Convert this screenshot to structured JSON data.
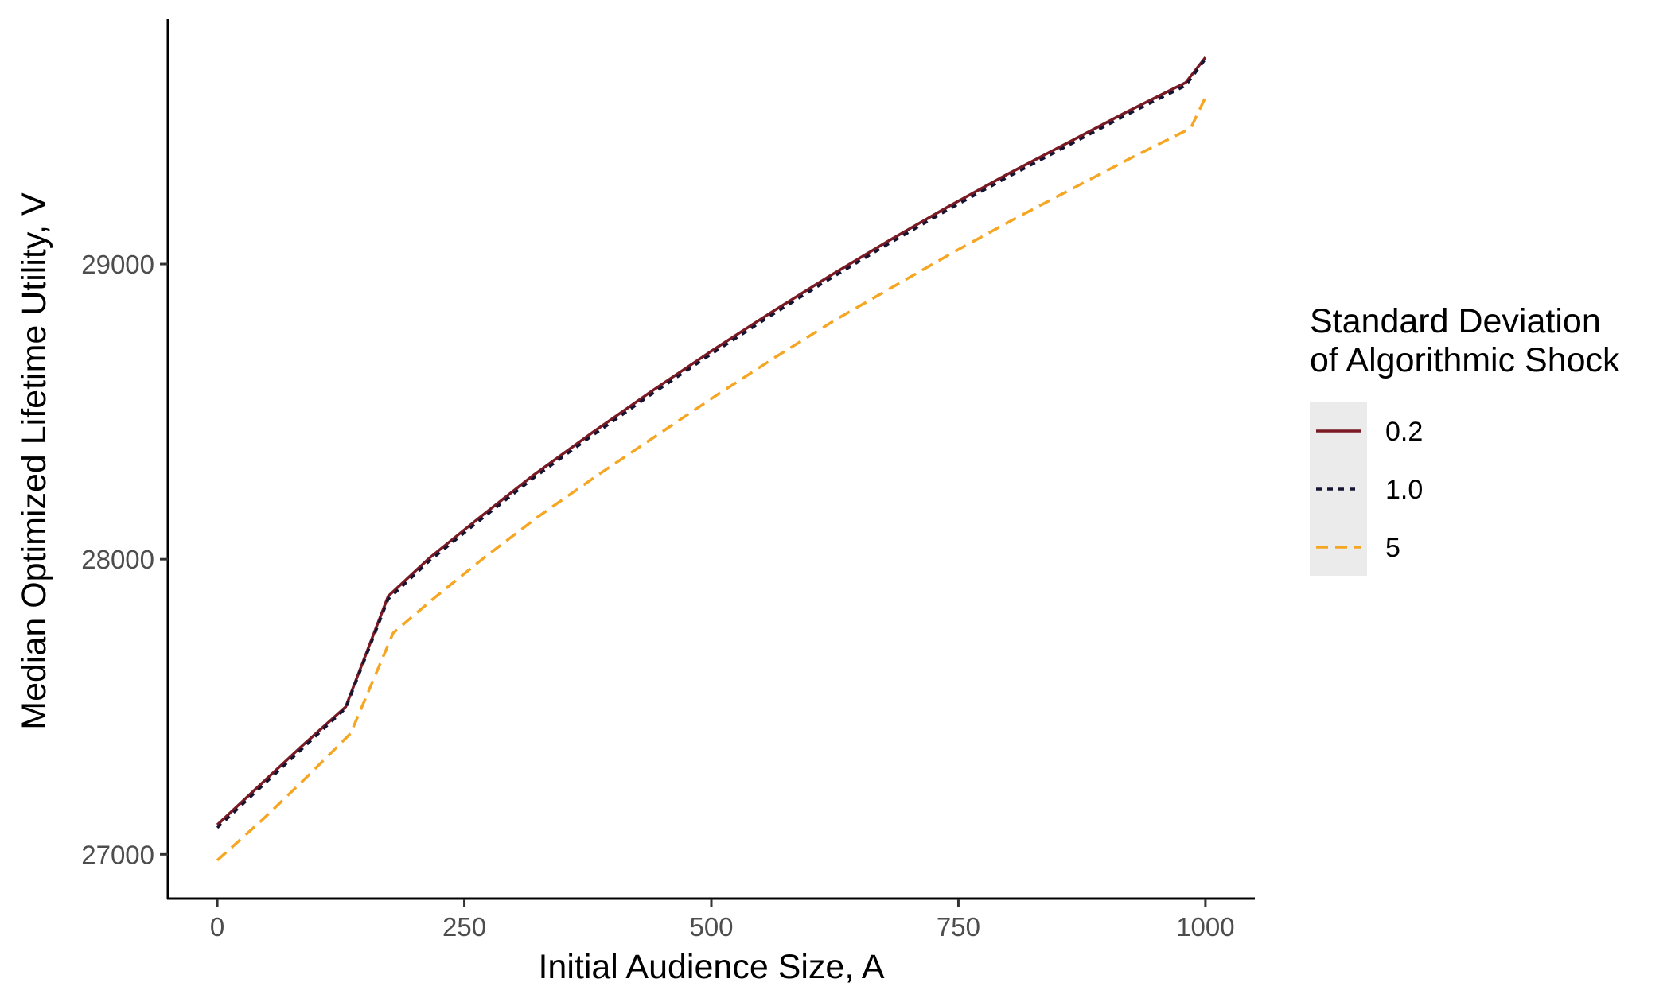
{
  "chart_data": {
    "type": "line",
    "xlabel": "Initial Audience Size, A",
    "ylabel": "Median Optimized Lifetime Utility, V",
    "xlim": [
      -50,
      1050
    ],
    "ylim": [
      26850,
      29830
    ],
    "x_ticks": [
      0,
      250,
      500,
      750,
      1000
    ],
    "x_tick_labels": [
      "0",
      "250",
      "500",
      "750",
      "1000"
    ],
    "y_ticks": [
      27000,
      28000,
      29000
    ],
    "y_tick_labels": [
      "27000",
      "28000",
      "29000"
    ],
    "grid": false,
    "legend": {
      "title_lines": [
        "Standard Deviation",
        "of Algorithmic Shock"
      ],
      "position": "right"
    },
    "series": [
      {
        "name": "0.2",
        "color": "#7a1a24",
        "dash": "solid",
        "x": [
          0,
          40,
          85,
          130,
          173,
          215,
          265,
          320,
          380,
          440,
          500,
          560,
          620,
          680,
          740,
          800,
          860,
          920,
          980,
          1000
        ],
        "y": [
          27100,
          27225,
          27365,
          27500,
          27875,
          28005,
          28140,
          28285,
          28430,
          28570,
          28705,
          28835,
          28960,
          29080,
          29195,
          29305,
          29410,
          29515,
          29615,
          29700
        ]
      },
      {
        "name": "1.0",
        "color": "#141433",
        "dash": "dotted",
        "x": [
          0,
          40,
          85,
          130,
          173,
          215,
          265,
          320,
          380,
          440,
          500,
          560,
          620,
          680,
          740,
          800,
          860,
          920,
          980,
          1000
        ],
        "y": [
          27090,
          27215,
          27355,
          27495,
          27865,
          27995,
          28130,
          28275,
          28420,
          28560,
          28695,
          28825,
          28950,
          29070,
          29185,
          29295,
          29400,
          29505,
          29605,
          29695
        ]
      },
      {
        "name": "5",
        "color": "#f5a623",
        "dash": "dashed",
        "x": [
          0,
          45,
          90,
          135,
          178,
          220,
          270,
          325,
          385,
          445,
          505,
          565,
          625,
          685,
          745,
          805,
          865,
          925,
          985,
          1000
        ],
        "y": [
          26980,
          27115,
          27260,
          27410,
          27750,
          27870,
          28005,
          28145,
          28285,
          28420,
          28555,
          28685,
          28810,
          28925,
          29040,
          29150,
          29255,
          29360,
          29460,
          29565
        ]
      }
    ]
  }
}
